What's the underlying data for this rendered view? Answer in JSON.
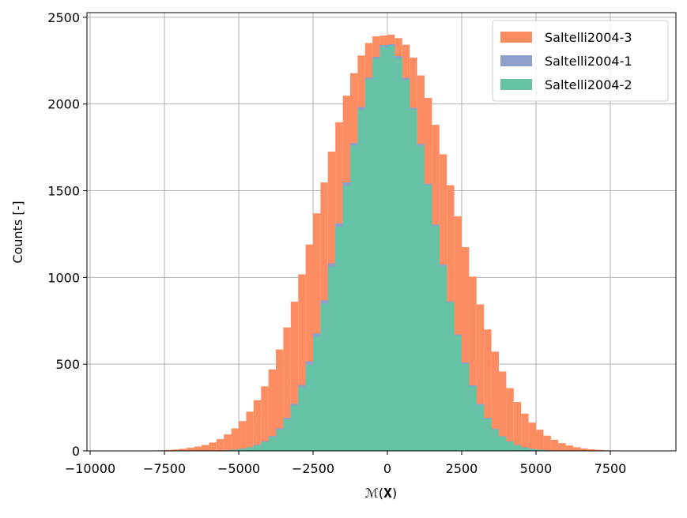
{
  "chart_data": {
    "type": "histogram",
    "xlabel": "ℳ(𝐗)",
    "ylabel": "Counts [-]",
    "xlim": [
      -10106,
      9707
    ],
    "ylim": [
      0,
      2527
    ],
    "xticks": [
      {
        "value": -10000,
        "label": "−10000"
      },
      {
        "value": -7500,
        "label": "−7500"
      },
      {
        "value": -5000,
        "label": "−5000"
      },
      {
        "value": -2500,
        "label": "−2500"
      },
      0,
      2500,
      5000,
      7500
    ],
    "yticks": [
      0,
      500,
      1000,
      1500,
      2000,
      2500
    ],
    "grid": true,
    "legend": "upper right",
    "series": [
      {
        "name": "Saltelli2004-3",
        "color": "#fc8d62",
        "bins": [
          -8000,
          -7750,
          -7500,
          -7250,
          -7000,
          -6750,
          -6500,
          -6250,
          -6000,
          -5750,
          -5500,
          -5250,
          -5000,
          -4750,
          -4500,
          -4250,
          -4000,
          -3750,
          -3500,
          -3250,
          -3000,
          -2750,
          -2500,
          -2250,
          -2000,
          -1750,
          -1500,
          -1250,
          -1000,
          -750,
          -500,
          -250,
          0,
          250,
          500,
          750,
          1000,
          1250,
          1500,
          1750,
          2000,
          2250,
          2500,
          2750,
          3000,
          3250,
          3500,
          3750,
          4000,
          4250,
          4500,
          4750,
          5000,
          5250,
          5500,
          5750,
          6000,
          6250,
          6500,
          6750,
          7000,
          7250,
          7500,
          7750,
          8000
        ],
        "values": [
          1,
          3,
          5,
          8,
          12,
          18,
          25,
          34,
          48,
          68,
          95,
          130,
          172,
          226,
          292,
          372,
          470,
          585,
          712,
          860,
          1018,
          1190,
          1370,
          1548,
          1726,
          1895,
          2048,
          2178,
          2280,
          2352,
          2390,
          2395,
          2400,
          2380,
          2342,
          2268,
          2165,
          2035,
          1880,
          1710,
          1532,
          1352,
          1175,
          1005,
          845,
          700,
          572,
          458,
          362,
          282,
          215,
          163,
          122,
          88,
          64,
          45,
          31,
          21,
          14,
          9,
          6,
          4,
          2,
          1
        ]
      },
      {
        "name": "Saltelli2004-1",
        "color": "#8da0cb",
        "bins": [
          -6000,
          -5750,
          -5500,
          -5250,
          -5000,
          -4750,
          -4500,
          -4250,
          -4000,
          -3750,
          -3500,
          -3250,
          -3000,
          -2750,
          -2500,
          -2250,
          -2000,
          -1750,
          -1500,
          -1250,
          -1000,
          -750,
          -500,
          -250,
          0,
          250,
          500,
          750,
          1000,
          1250,
          1500,
          1750,
          2000,
          2250,
          2500,
          2750,
          3000,
          3250,
          3500,
          3750,
          4000,
          4250,
          4500,
          4750,
          5000,
          5250,
          5500,
          5750,
          6000
        ],
        "values": [
          1,
          2,
          4,
          8,
          13,
          21,
          35,
          56,
          86,
          130,
          191,
          272,
          380,
          515,
          678,
          868,
          1082,
          1312,
          1548,
          1776,
          1982,
          2152,
          2272,
          2340,
          2345,
          2276,
          2150,
          1978,
          1770,
          1540,
          1305,
          1075,
          862,
          672,
          510,
          378,
          270,
          190,
          128,
          85,
          55,
          34,
          21,
          12,
          7,
          4,
          2,
          1
        ]
      },
      {
        "name": "Saltelli2004-2",
        "color": "#66c2a5",
        "bins": [
          -6000,
          -5750,
          -5500,
          -5250,
          -5000,
          -4750,
          -4500,
          -4250,
          -4000,
          -3750,
          -3500,
          -3250,
          -3000,
          -2750,
          -2500,
          -2250,
          -2000,
          -1750,
          -1500,
          -1250,
          -1000,
          -750,
          -500,
          -250,
          0,
          250,
          500,
          750,
          1000,
          1250,
          1500,
          1750,
          2000,
          2250,
          2500,
          2750,
          3000,
          3250,
          3500,
          3750,
          4000,
          4250,
          4500,
          4750,
          5000,
          5250,
          5500,
          5750,
          6000
        ],
        "values": [
          1,
          1,
          3,
          6,
          11,
          19,
          31,
          50,
          80,
          122,
          182,
          262,
          366,
          498,
          660,
          850,
          1062,
          1292,
          1528,
          1760,
          1968,
          2142,
          2262,
          2328,
          2335,
          2264,
          2140,
          1970,
          1760,
          1532,
          1296,
          1066,
          854,
          664,
          502,
          370,
          264,
          184,
          124,
          81,
          52,
          32,
          19,
          11,
          6,
          3,
          1,
          1
        ]
      }
    ]
  }
}
